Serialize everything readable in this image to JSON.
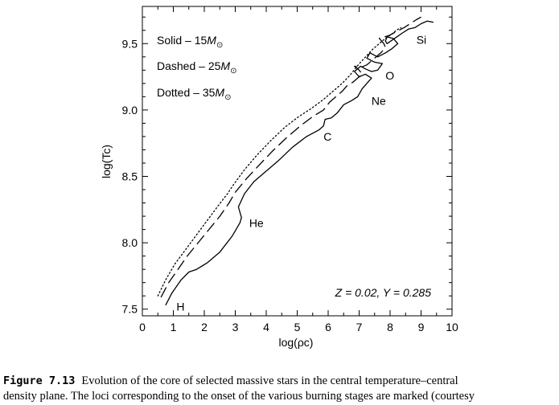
{
  "chart_data": {
    "type": "line",
    "xlabel": "log(ρc)",
    "ylabel": "log(Tc)",
    "xlim": [
      0,
      10
    ],
    "ylim": [
      7.45,
      9.78
    ],
    "x_ticks": [
      "0",
      "1",
      "2",
      "3",
      "4",
      "5",
      "6",
      "7",
      "8",
      "9",
      "10"
    ],
    "y_ticks": [
      "7.5",
      "8.0",
      "8.5",
      "9.0",
      "9.5"
    ],
    "grid": false,
    "legend_lines": [
      {
        "prefix": "Solid – 15",
        "mass_symbol": "M",
        "sun_symbol": "⊙"
      },
      {
        "prefix": "Dashed – 25",
        "mass_symbol": "M",
        "sun_symbol": "⊙"
      },
      {
        "prefix": "Dotted – 35",
        "mass_symbol": "M",
        "sun_symbol": "⊙"
      }
    ],
    "annotation": "Z = 0.02,  Y = 0.285",
    "stage_labels": [
      {
        "text": "H",
        "x": 1.1,
        "y": 7.52
      },
      {
        "text": "He",
        "x": 3.45,
        "y": 8.15
      },
      {
        "text": "C",
        "x": 5.85,
        "y": 8.8
      },
      {
        "text": "Ne",
        "x": 7.4,
        "y": 9.07
      },
      {
        "text": "O",
        "x": 7.85,
        "y": 9.26
      },
      {
        "text": "Si",
        "x": 8.85,
        "y": 9.53
      }
    ],
    "series": [
      {
        "style": "solid",
        "x": [
          0.75,
          0.95,
          1.25,
          1.5,
          1.75,
          2.1,
          2.5,
          2.9,
          3.15,
          3.2,
          3.1,
          3.3,
          3.6,
          3.95,
          4.4,
          4.85,
          5.3,
          5.7,
          5.85,
          5.9,
          6.1,
          6.3,
          6.5,
          6.75,
          6.95,
          7.1,
          7.25,
          7.4,
          7.2,
          7.0,
          6.85,
          7.05,
          7.2,
          7.4,
          7.6,
          7.75,
          7.5,
          7.25,
          7.35,
          7.6,
          7.85,
          8.05,
          8.25,
          8.1,
          7.9,
          7.85,
          7.9,
          8.15,
          8.4,
          8.6,
          8.8,
          9.0,
          9.2,
          9.4
        ],
        "y": [
          7.53,
          7.62,
          7.72,
          7.78,
          7.8,
          7.85,
          7.93,
          8.05,
          8.15,
          8.19,
          8.27,
          8.37,
          8.46,
          8.53,
          8.62,
          8.72,
          8.8,
          8.85,
          8.88,
          8.93,
          8.94,
          8.98,
          9.04,
          9.07,
          9.1,
          9.16,
          9.2,
          9.24,
          9.27,
          9.25,
          9.29,
          9.33,
          9.31,
          9.29,
          9.3,
          9.35,
          9.36,
          9.39,
          9.43,
          9.4,
          9.43,
          9.46,
          9.5,
          9.54,
          9.55,
          9.52,
          9.5,
          9.54,
          9.58,
          9.61,
          9.62,
          9.65,
          9.67,
          9.66
        ]
      },
      {
        "style": "dashed",
        "x": [
          0.6,
          0.85,
          1.15,
          1.45,
          1.8,
          2.15,
          2.5,
          2.8,
          3.0,
          3.35,
          3.75,
          4.2,
          4.65,
          5.1,
          5.5,
          5.85,
          6.05,
          6.25,
          6.45,
          6.6,
          6.8,
          6.95,
          7.1,
          7.0,
          6.85,
          7.05,
          7.25,
          7.4,
          7.55,
          7.7,
          7.85,
          7.8,
          7.65,
          7.95,
          8.2,
          8.45,
          8.65,
          8.85,
          9.0
        ],
        "y": [
          7.59,
          7.7,
          7.8,
          7.9,
          8.0,
          8.1,
          8.2,
          8.3,
          8.38,
          8.48,
          8.58,
          8.69,
          8.79,
          8.88,
          8.95,
          9.0,
          9.06,
          9.1,
          9.14,
          9.18,
          9.21,
          9.24,
          9.27,
          9.3,
          9.33,
          9.32,
          9.34,
          9.37,
          9.4,
          9.43,
          9.47,
          9.5,
          9.54,
          9.56,
          9.59,
          9.62,
          9.65,
          9.68,
          9.7
        ]
      },
      {
        "style": "dotted",
        "x": [
          0.5,
          0.75,
          1.05,
          1.4,
          1.75,
          2.1,
          2.45,
          2.75,
          2.95,
          3.3,
          3.7,
          4.15,
          4.6,
          5.05,
          5.45,
          5.85,
          6.15,
          6.45,
          6.7,
          6.9,
          7.05,
          7.25,
          7.45,
          7.65,
          7.85,
          8.05,
          8.2,
          8.35
        ],
        "y": [
          7.6,
          7.72,
          7.84,
          7.95,
          8.06,
          8.17,
          8.28,
          8.37,
          8.44,
          8.55,
          8.66,
          8.77,
          8.87,
          8.95,
          9.01,
          9.08,
          9.14,
          9.2,
          9.26,
          9.32,
          9.36,
          9.41,
          9.46,
          9.5,
          9.54,
          9.57,
          9.6,
          9.62
        ]
      }
    ]
  },
  "caption": {
    "figure_number": "Figure 7.13",
    "line1": "Evolution of the core of selected massive stars in the central temperature–central",
    "line2": "density plane. The loci corresponding to the onset of the various burning stages are marked (courtesy"
  }
}
